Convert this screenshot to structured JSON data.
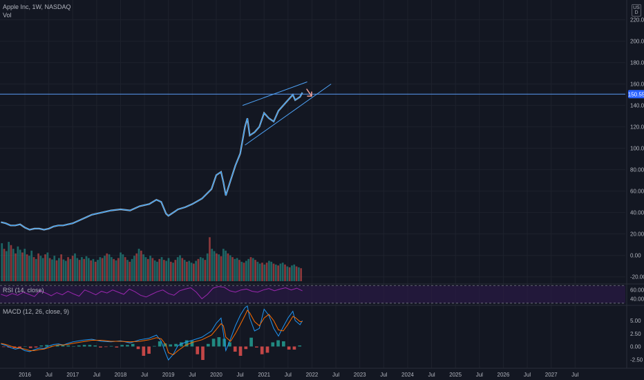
{
  "header": {
    "symbol_line": "Apple Inc, 1W, NASDAQ",
    "vol_label": "Vol"
  },
  "currency_label": "USD",
  "price_badge": "150.55",
  "rsi_label": "RSI (14, close)",
  "macd_label": "MACD (12, 26, close, 9)",
  "colors": {
    "background": "#131722",
    "up": "#26a69a",
    "down": "#ef5350",
    "price_line": "#2962ff",
    "rsi": "#9c27b0",
    "rsi_band": "#2a1a45",
    "macd": "#2196f3",
    "signal": "#ff6d00",
    "grid": "#1e222d",
    "text": "#b2b5be"
  },
  "chart_data": [
    {
      "type": "line",
      "pane": "price",
      "ylim": [
        -26,
        232
      ],
      "y_ticks": [
        "220.00",
        "200.00",
        "180.00",
        "160.00",
        "140.00",
        "120.00",
        "100.00",
        "80.00",
        "60.00",
        "40.00",
        "20.00",
        "0.00",
        "-20.00"
      ],
      "y_tick_values": [
        220,
        200,
        180,
        160,
        140,
        120,
        100,
        80,
        60,
        40,
        20,
        0,
        -20
      ],
      "x_ticks": [
        "2016",
        "Jul",
        "2017",
        "Jul",
        "2018",
        "Jul",
        "2019",
        "Jul",
        "2020",
        "Jul",
        "2021",
        "Jul",
        "2022",
        "Jul",
        "2023",
        "Jul",
        "2024",
        "Jul",
        "2025",
        "Jul",
        "2026",
        "Jul",
        "2027",
        "Jul"
      ],
      "x_tick_years": [
        2016,
        2016.5,
        2017,
        2017.5,
        2018,
        2018.5,
        2019,
        2019.5,
        2020,
        2020.5,
        2021,
        2021.5,
        2022,
        2022.5,
        2023,
        2023.5,
        2024,
        2024.5,
        2025,
        2025.5,
        2026,
        2026.5,
        2027,
        2027.5
      ],
      "xlim": [
        2015.48,
        2028.55
      ],
      "series": [
        {
          "x": [
            2015.5,
            2015.6,
            2015.7,
            2015.8,
            2015.9,
            2016.0,
            2016.1,
            2016.2,
            2016.3,
            2016.4,
            2016.5,
            2016.6,
            2016.7,
            2016.8,
            2016.9,
            2017.0,
            2017.2,
            2017.4,
            2017.6,
            2017.8,
            2018.0,
            2018.2,
            2018.4,
            2018.6,
            2018.75,
            2018.85,
            2018.95,
            2019.0,
            2019.1,
            2019.2,
            2019.35,
            2019.5,
            2019.7,
            2019.9,
            2020.0,
            2020.1,
            2020.15,
            2020.2,
            2020.3,
            2020.4,
            2020.5,
            2020.6,
            2020.65,
            2020.7,
            2020.8,
            2020.9,
            2021.0,
            2021.1,
            2021.2,
            2021.3,
            2021.4,
            2021.5,
            2021.6,
            2021.65,
            2021.75,
            2021.8
          ],
          "values": [
            31,
            30,
            28,
            28,
            29,
            26,
            24,
            25,
            25,
            24,
            25,
            27,
            28,
            28,
            29,
            30,
            34,
            38,
            40,
            42,
            43,
            42,
            46,
            48,
            52,
            50,
            39,
            37,
            40,
            43,
            45,
            48,
            53,
            62,
            75,
            78,
            68,
            56,
            70,
            84,
            95,
            120,
            128,
            112,
            115,
            120,
            133,
            128,
            125,
            135,
            140,
            145,
            150,
            145,
            148,
            152
          ]
        }
      ],
      "price_line_value": 150.55,
      "wedge_upper": [
        [
          2020.55,
          140
        ],
        [
          2021.9,
          162
        ]
      ],
      "wedge_lower": [
        [
          2020.6,
          103
        ],
        [
          2022.4,
          160
        ]
      ]
    },
    {
      "type": "bar",
      "pane": "volume",
      "note": "relative weekly volume, 0-100 scale",
      "values": [
        82,
        70,
        65,
        85,
        78,
        70,
        60,
        75,
        68,
        62,
        70,
        58,
        55,
        66,
        52,
        48,
        60,
        55,
        50,
        58,
        62,
        50,
        47,
        55,
        45,
        50,
        58,
        47,
        44,
        52,
        48,
        55,
        60,
        50,
        46,
        52,
        48,
        54,
        50,
        45,
        48,
        42,
        46,
        52,
        50,
        55,
        60,
        58,
        52,
        48,
        45,
        50,
        62,
        58,
        52,
        46,
        42,
        48,
        55,
        60,
        70,
        66,
        58,
        52,
        48,
        55,
        50,
        45,
        42,
        48,
        52,
        46,
        44,
        50,
        42,
        40,
        46,
        52,
        56,
        50,
        46,
        42,
        44,
        40,
        38,
        44,
        48,
        52,
        50,
        46,
        60,
        95,
        70,
        65,
        60,
        58,
        54,
        70,
        66,
        60,
        56,
        52,
        48,
        50,
        46,
        42,
        40,
        44,
        48,
        52,
        50,
        46,
        42,
        38,
        40,
        36,
        40,
        44,
        42,
        38,
        36,
        34,
        38,
        40,
        36,
        32,
        30,
        34,
        36,
        32,
        30,
        28
      ]
    },
    {
      "type": "line",
      "pane": "rsi",
      "ylim": [
        25,
        72
      ],
      "y_ticks": [
        "60.00",
        "40.00"
      ],
      "band": [
        30,
        70
      ],
      "values": [
        50,
        46,
        52,
        48,
        55,
        50,
        45,
        58,
        53,
        47,
        54,
        49,
        57,
        51,
        46,
        60,
        55,
        49,
        57,
        53,
        60,
        55,
        50,
        62,
        56,
        48,
        44,
        50,
        56,
        60,
        52,
        48,
        58,
        62,
        65,
        55,
        40,
        50,
        64,
        68,
        66,
        58,
        55,
        60,
        62,
        57,
        55,
        60,
        63,
        58,
        62,
        65,
        60,
        64,
        58
      ]
    },
    {
      "type": "line",
      "pane": "macd",
      "ylim": [
        -3.8,
        7.8
      ],
      "y_ticks": [
        "5.00",
        "2.50",
        "0.00",
        "-2.50"
      ],
      "y_tick_values": [
        5,
        2.5,
        0,
        -2.5
      ],
      "x": [
        2015.5,
        2015.6,
        2015.7,
        2015.8,
        2015.9,
        2016.0,
        2016.1,
        2016.2,
        2016.3,
        2016.4,
        2016.5,
        2016.6,
        2016.7,
        2016.8,
        2016.9,
        2017.0,
        2017.2,
        2017.4,
        2017.6,
        2017.8,
        2018.0,
        2018.2,
        2018.4,
        2018.6,
        2018.75,
        2018.85,
        2018.95,
        2019.0,
        2019.1,
        2019.2,
        2019.35,
        2019.5,
        2019.7,
        2019.9,
        2020.0,
        2020.1,
        2020.15,
        2020.2,
        2020.3,
        2020.4,
        2020.5,
        2020.6,
        2020.65,
        2020.7,
        2020.8,
        2020.9,
        2021.0,
        2021.1,
        2021.2,
        2021.3,
        2021.4,
        2021.5,
        2021.6,
        2021.65,
        2021.75,
        2021.8
      ],
      "series": [
        {
          "name": "MACD",
          "values": [
            0.5,
            0.2,
            -0.2,
            -0.5,
            -0.3,
            -0.8,
            -1.0,
            -0.6,
            -0.3,
            -0.4,
            0.1,
            0.4,
            0.5,
            0.3,
            0.6,
            0.9,
            1.2,
            1.4,
            1.0,
            0.9,
            1.1,
            0.7,
            1.3,
            1.6,
            2.2,
            1.0,
            -1.5,
            -2.6,
            -1.5,
            0.2,
            0.8,
            1.2,
            1.8,
            3.0,
            4.5,
            5.5,
            2.5,
            -0.8,
            1.5,
            4.0,
            6.0,
            7.5,
            7.8,
            5.5,
            3.0,
            3.5,
            7.2,
            6.0,
            3.5,
            2.0,
            3.8,
            5.5,
            6.8,
            5.0,
            4.2,
            5.0
          ]
        },
        {
          "name": "Signal",
          "values": [
            0.6,
            0.4,
            0.1,
            -0.2,
            -0.3,
            -0.5,
            -0.8,
            -0.8,
            -0.6,
            -0.5,
            -0.2,
            0.1,
            0.3,
            0.3,
            0.4,
            0.6,
            0.9,
            1.2,
            1.2,
            1.0,
            1.0,
            0.9,
            1.0,
            1.3,
            1.7,
            1.5,
            0.3,
            -1.2,
            -1.6,
            -0.8,
            0.2,
            0.8,
            1.3,
            2.2,
            3.3,
            4.4,
            4.0,
            1.8,
            1.0,
            2.5,
            4.2,
            6.0,
            7.0,
            6.5,
            4.8,
            4.0,
            5.5,
            6.2,
            5.0,
            3.2,
            3.0,
            4.3,
            5.8,
            5.6,
            4.8,
            4.8
          ]
        }
      ],
      "histogram": [
        -0.1,
        -0.2,
        -0.3,
        -0.3,
        0.0,
        -0.3,
        -0.2,
        0.2,
        0.3,
        0.1,
        0.3,
        0.3,
        0.2,
        0.0,
        0.2,
        0.3,
        0.3,
        0.2,
        -0.2,
        -0.1,
        0.1,
        -0.2,
        0.3,
        0.3,
        0.5,
        -0.5,
        -1.8,
        -1.4,
        0.1,
        1.0,
        0.6,
        0.4,
        0.5,
        0.8,
        1.2,
        1.1,
        -1.5,
        -2.6,
        0.5,
        1.5,
        1.8,
        1.5,
        0.8,
        -1.0,
        -1.8,
        -0.5,
        1.7,
        -0.2,
        -1.5,
        -1.2,
        0.8,
        1.2,
        1.0,
        -0.6,
        -0.6,
        0.2
      ]
    }
  ]
}
